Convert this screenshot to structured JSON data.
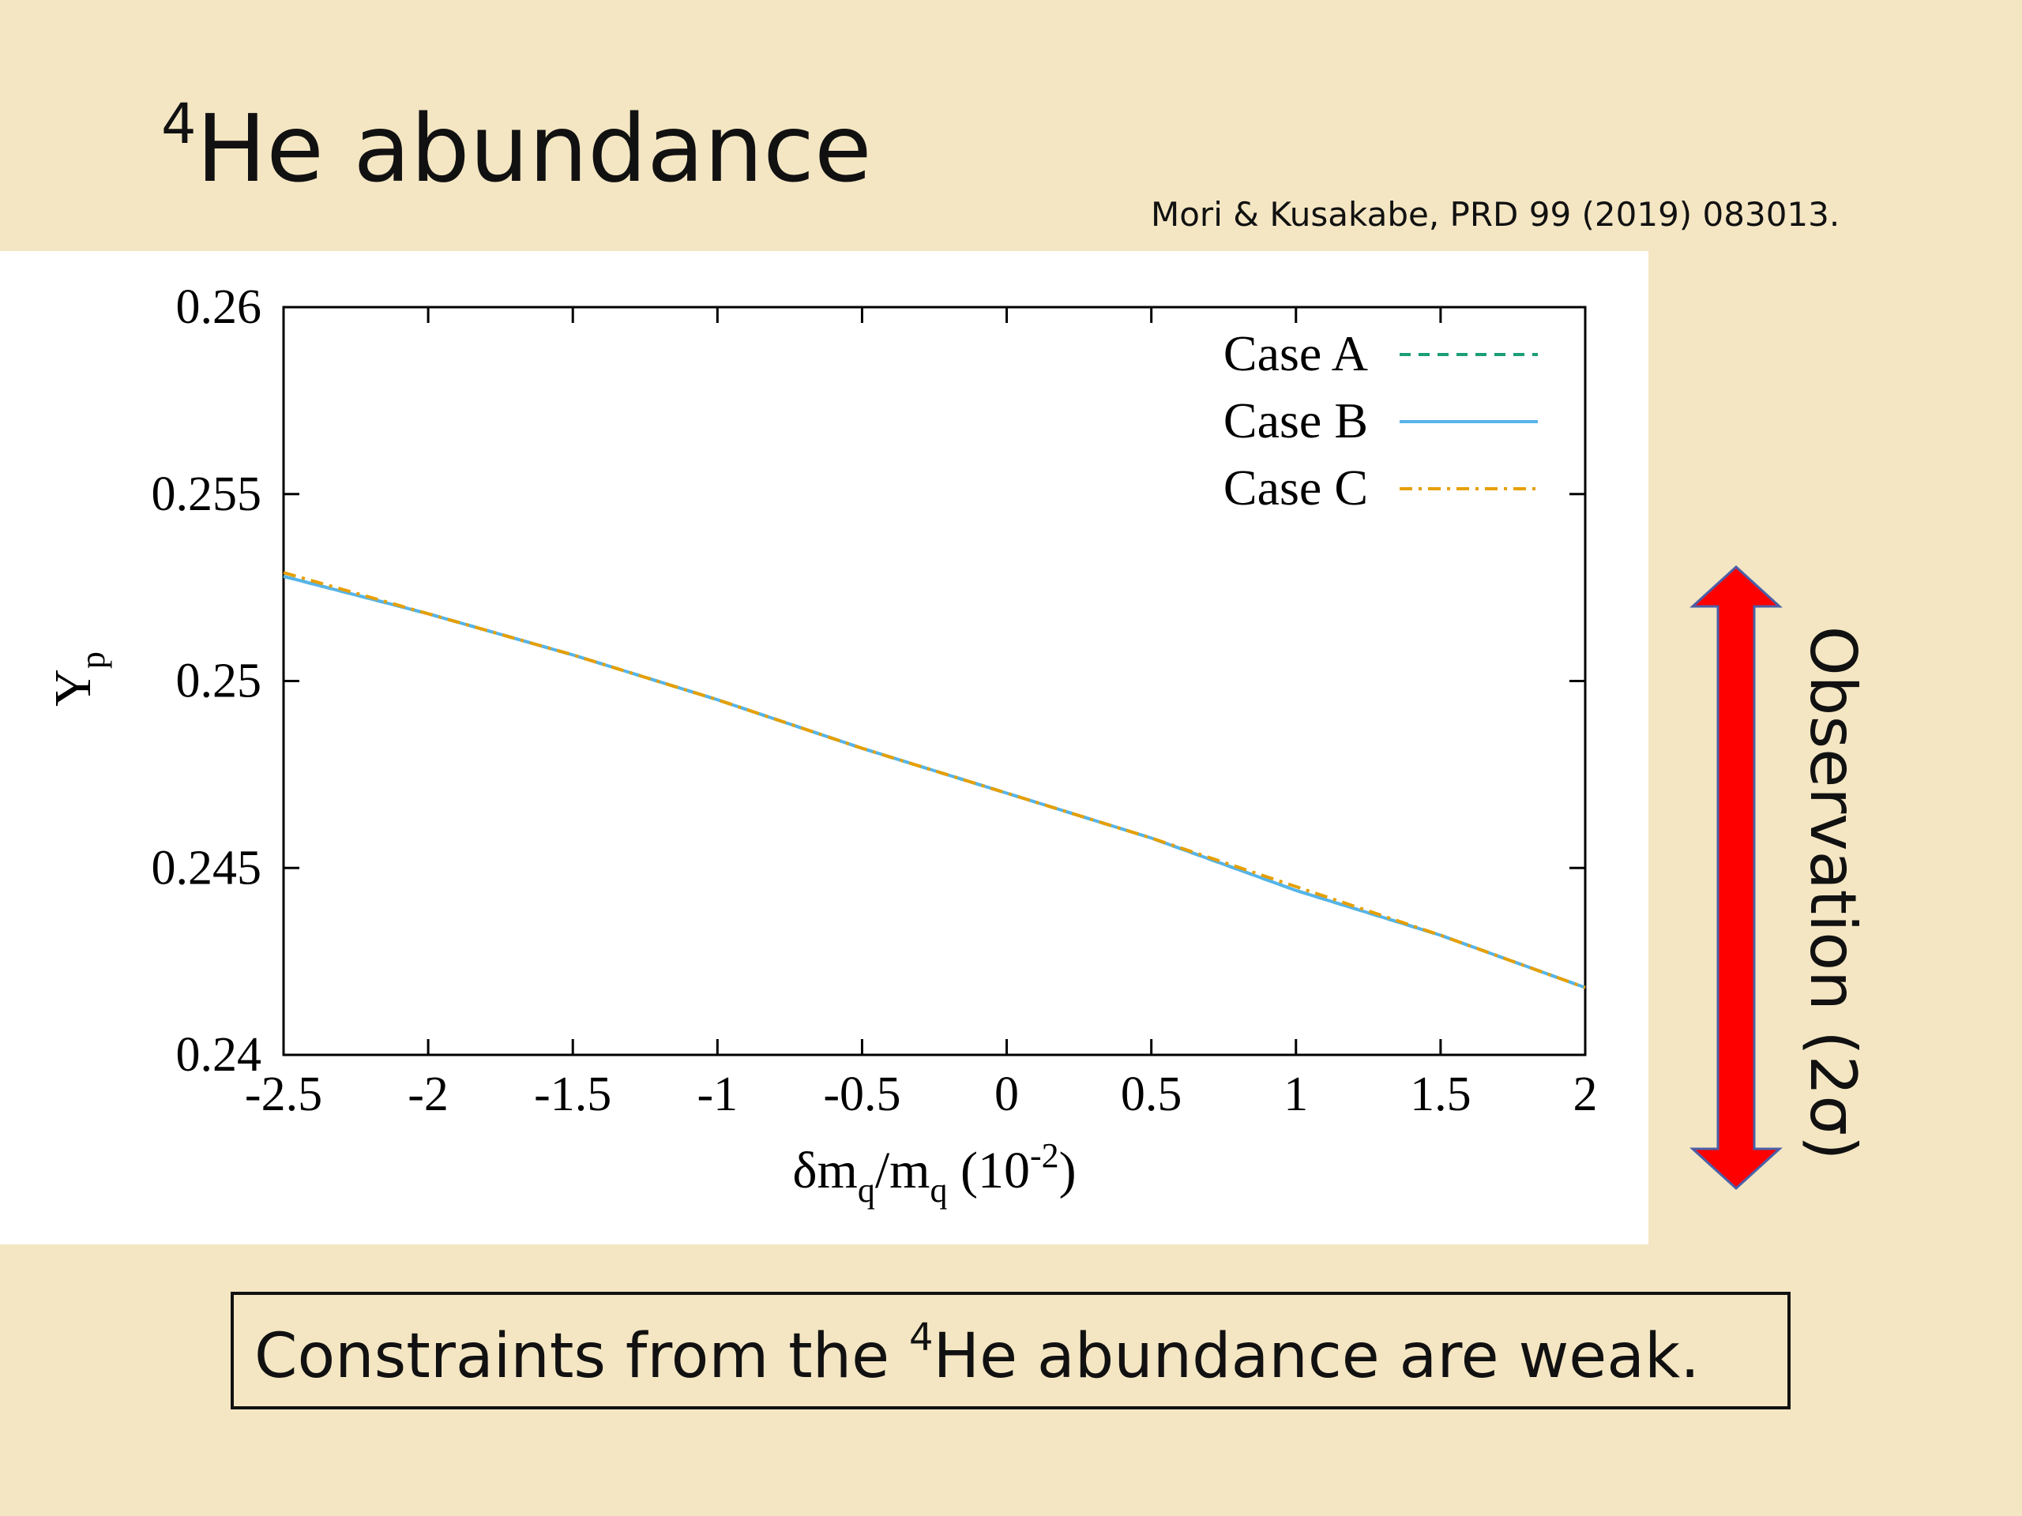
{
  "slide": {
    "title_sup": "4",
    "title": "He abundance",
    "citation": "Mori & Kusakabe, PRD 99 (2019) 083013.",
    "arrow_label": "Observation (2σ)",
    "conclusion": [
      "Constraints from the ",
      "4",
      "He abundance are weak."
    ]
  },
  "chart_data": {
    "type": "line",
    "x_label": [
      "δm",
      "q",
      "/m",
      "q",
      " (10",
      "-2",
      ")"
    ],
    "y_label": [
      "Y",
      "p"
    ],
    "x": [
      -2.5,
      -2,
      -1.5,
      -1,
      -0.5,
      0,
      0.5,
      1,
      1.5,
      2
    ],
    "series": [
      {
        "name": "Case A",
        "color": "#1b9e77",
        "dash": "dashed",
        "values": [
          0.2528,
          0.2518,
          0.2507,
          0.2495,
          0.2482,
          0.247,
          0.2458,
          0.2444,
          0.2432,
          0.2418
        ]
      },
      {
        "name": "Case B",
        "color": "#56b4e9",
        "dash": "solid",
        "values": [
          0.2528,
          0.2518,
          0.2507,
          0.2495,
          0.2482,
          0.247,
          0.2458,
          0.2444,
          0.2432,
          0.2418
        ]
      },
      {
        "name": "Case C",
        "color": "#e69f00",
        "dash": "dashdot",
        "values": [
          0.2529,
          0.2518,
          0.2507,
          0.2495,
          0.2482,
          0.247,
          0.2458,
          0.2445,
          0.2432,
          0.2418
        ]
      }
    ],
    "xlim": [
      -2.5,
      2
    ],
    "ylim": [
      0.24,
      0.26
    ],
    "xticks": [
      -2.5,
      -2,
      -1.5,
      -1,
      -0.5,
      0,
      0.5,
      1,
      1.5,
      2
    ],
    "yticks": [
      0.24,
      0.245,
      0.25,
      0.255,
      0.26
    ],
    "legend": "upper right",
    "grid": false
  }
}
